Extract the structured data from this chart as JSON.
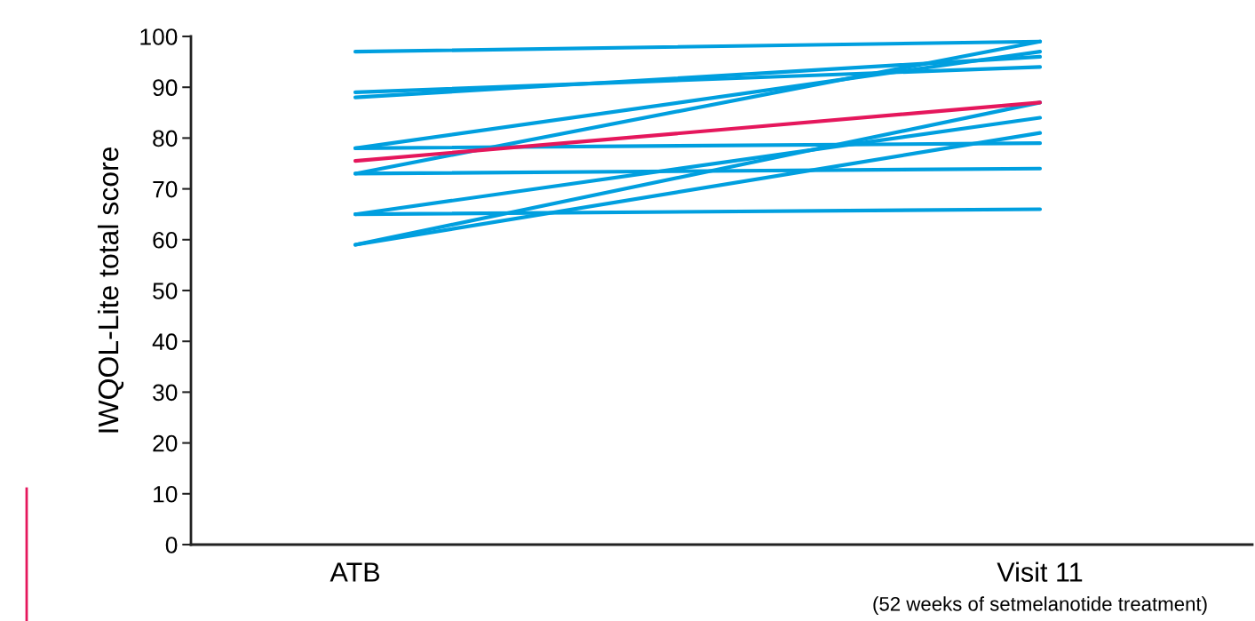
{
  "chart_data": {
    "type": "line",
    "ylabel": "IWQOL-Lite total score",
    "categories": [
      "ATB",
      "Visit 11"
    ],
    "annotations": [
      "(52 weeks of setmelanotide treatment)"
    ],
    "ylim": [
      0,
      100
    ],
    "yticks": [
      0,
      10,
      20,
      30,
      40,
      50,
      60,
      70,
      80,
      90,
      100
    ],
    "grid": false,
    "marker": "none",
    "line_style": "solid",
    "series": [
      {
        "color": "#009fdf",
        "values": [
          97,
          99
        ]
      },
      {
        "color": "#009fdf",
        "values": [
          89,
          94
        ]
      },
      {
        "color": "#009fdf",
        "values": [
          88,
          96
        ]
      },
      {
        "color": "#009fdf",
        "values": [
          78,
          97
        ]
      },
      {
        "color": "#009fdf",
        "values": [
          78,
          79
        ]
      },
      {
        "color": "#009fdf",
        "values": [
          73,
          99
        ]
      },
      {
        "color": "#009fdf",
        "values": [
          73,
          74
        ]
      },
      {
        "color": "#009fdf",
        "values": [
          65,
          66
        ]
      },
      {
        "color": "#009fdf",
        "values": [
          65,
          84
        ]
      },
      {
        "color": "#009fdf",
        "values": [
          59,
          87
        ]
      },
      {
        "color": "#009fdf",
        "values": [
          59,
          81
        ]
      },
      {
        "color": "#e5175c",
        "values": [
          75.5,
          87
        ]
      }
    ]
  }
}
